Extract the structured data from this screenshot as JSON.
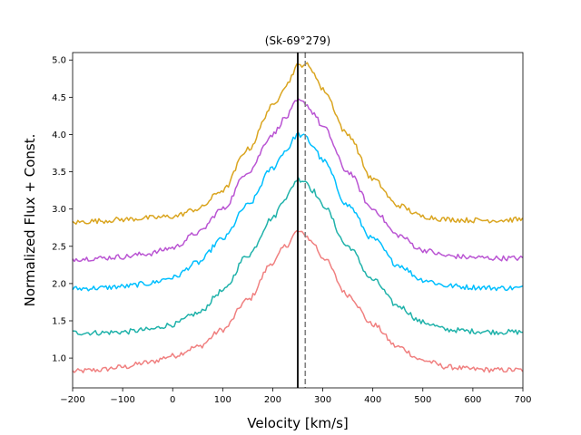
{
  "chart_data": {
    "type": "line",
    "title": "(Sk-69°279)",
    "xlabel": "Velocity [km/s]",
    "ylabel": "Normalized Flux + Const.",
    "xlim": [
      -200,
      700
    ],
    "ylim": [
      0.6,
      5.1
    ],
    "xticks": [
      -200,
      -100,
      0,
      100,
      200,
      300,
      400,
      500,
      600,
      700
    ],
    "xtick_labels": [
      "−200",
      "−100",
      "0",
      "100",
      "200",
      "300",
      "400",
      "500",
      "600",
      "700"
    ],
    "yticks": [
      1.0,
      1.5,
      2.0,
      2.5,
      3.0,
      3.5,
      4.0,
      4.5,
      5.0
    ],
    "ytick_labels": [
      "1.0",
      "1.5",
      "2.0",
      "2.5",
      "3.0",
      "3.5",
      "4.0",
      "4.5",
      "5.0"
    ],
    "grid": false,
    "vlines": [
      {
        "name": "solid-reference-line",
        "x": 250,
        "color": "#000000",
        "style": "solid"
      },
      {
        "name": "dashed-reference-line",
        "x": 265,
        "color": "#808080",
        "style": "dashed"
      }
    ],
    "series": [
      {
        "name": "profile-1",
        "color": "#f08080",
        "points": [
          [
            -200,
            0.82
          ],
          [
            -150,
            0.84
          ],
          [
            -100,
            0.88
          ],
          [
            -50,
            0.94
          ],
          [
            0,
            1.03
          ],
          [
            50,
            1.15
          ],
          [
            100,
            1.38
          ],
          [
            150,
            1.78
          ],
          [
            200,
            2.28
          ],
          [
            225,
            2.5
          ],
          [
            250,
            2.7
          ],
          [
            265,
            2.65
          ],
          [
            280,
            2.55
          ],
          [
            300,
            2.35
          ],
          [
            350,
            1.85
          ],
          [
            400,
            1.45
          ],
          [
            450,
            1.15
          ],
          [
            500,
            0.97
          ],
          [
            550,
            0.88
          ],
          [
            600,
            0.85
          ],
          [
            650,
            0.84
          ],
          [
            700,
            0.84
          ]
        ]
      },
      {
        "name": "profile-2",
        "color": "#20b2aa",
        "points": [
          [
            -200,
            1.34
          ],
          [
            -150,
            1.34
          ],
          [
            -100,
            1.35
          ],
          [
            -50,
            1.38
          ],
          [
            0,
            1.45
          ],
          [
            50,
            1.6
          ],
          [
            100,
            1.9
          ],
          [
            150,
            2.38
          ],
          [
            200,
            2.88
          ],
          [
            225,
            3.15
          ],
          [
            250,
            3.4
          ],
          [
            265,
            3.38
          ],
          [
            280,
            3.25
          ],
          [
            300,
            3.05
          ],
          [
            350,
            2.5
          ],
          [
            400,
            2.05
          ],
          [
            450,
            1.7
          ],
          [
            500,
            1.48
          ],
          [
            550,
            1.38
          ],
          [
            600,
            1.36
          ],
          [
            650,
            1.35
          ],
          [
            700,
            1.35
          ]
        ]
      },
      {
        "name": "profile-3",
        "color": "#00bfff",
        "points": [
          [
            -200,
            1.93
          ],
          [
            -150,
            1.94
          ],
          [
            -100,
            1.96
          ],
          [
            -50,
            2.0
          ],
          [
            0,
            2.08
          ],
          [
            50,
            2.28
          ],
          [
            100,
            2.6
          ],
          [
            150,
            3.05
          ],
          [
            200,
            3.55
          ],
          [
            225,
            3.78
          ],
          [
            250,
            4.0
          ],
          [
            265,
            3.97
          ],
          [
            280,
            3.85
          ],
          [
            300,
            3.65
          ],
          [
            350,
            3.05
          ],
          [
            400,
            2.6
          ],
          [
            450,
            2.25
          ],
          [
            500,
            2.05
          ],
          [
            550,
            1.97
          ],
          [
            600,
            1.95
          ],
          [
            650,
            1.94
          ],
          [
            700,
            1.94
          ]
        ]
      },
      {
        "name": "profile-4",
        "color": "#ba55d3",
        "points": [
          [
            -200,
            2.33
          ],
          [
            -150,
            2.34
          ],
          [
            -100,
            2.36
          ],
          [
            -50,
            2.4
          ],
          [
            0,
            2.48
          ],
          [
            50,
            2.68
          ],
          [
            100,
            3.0
          ],
          [
            150,
            3.5
          ],
          [
            200,
            4.0
          ],
          [
            225,
            4.22
          ],
          [
            250,
            4.45
          ],
          [
            265,
            4.42
          ],
          [
            280,
            4.3
          ],
          [
            300,
            4.1
          ],
          [
            350,
            3.5
          ],
          [
            400,
            3.0
          ],
          [
            450,
            2.65
          ],
          [
            500,
            2.45
          ],
          [
            550,
            2.37
          ],
          [
            600,
            2.35
          ],
          [
            650,
            2.34
          ],
          [
            700,
            2.34
          ]
        ]
      },
      {
        "name": "profile-5",
        "color": "#daa520",
        "points": [
          [
            -200,
            2.82
          ],
          [
            -150,
            2.84
          ],
          [
            -100,
            2.86
          ],
          [
            -50,
            2.88
          ],
          [
            0,
            2.9
          ],
          [
            50,
            3.0
          ],
          [
            100,
            3.25
          ],
          [
            150,
            3.8
          ],
          [
            200,
            4.38
          ],
          [
            225,
            4.65
          ],
          [
            250,
            4.92
          ],
          [
            265,
            4.95
          ],
          [
            280,
            4.85
          ],
          [
            300,
            4.6
          ],
          [
            350,
            4.0
          ],
          [
            400,
            3.4
          ],
          [
            450,
            3.05
          ],
          [
            500,
            2.9
          ],
          [
            550,
            2.86
          ],
          [
            600,
            2.85
          ],
          [
            650,
            2.85
          ],
          [
            700,
            2.86
          ]
        ]
      }
    ]
  }
}
